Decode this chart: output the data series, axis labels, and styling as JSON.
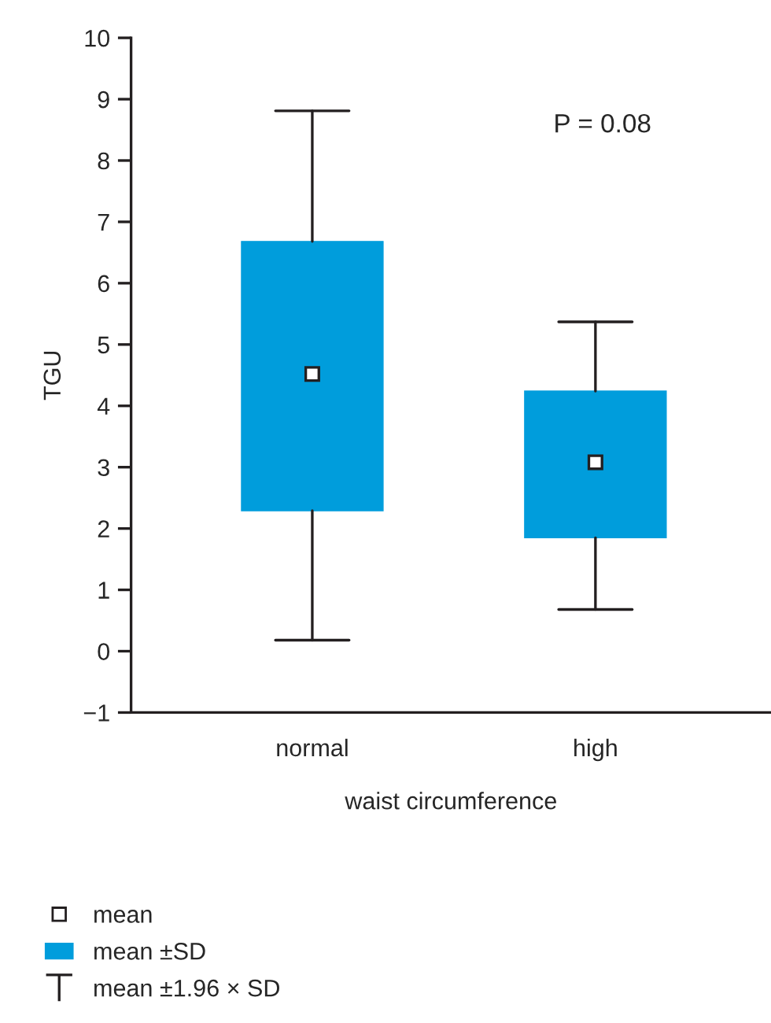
{
  "chart_data": {
    "type": "box",
    "xlabel": "waist circumference",
    "ylabel": "TGU",
    "categories": [
      "normal",
      "high"
    ],
    "ylim": [
      -1,
      10
    ],
    "yticks": [
      {
        "value": -1,
        "label": "−1"
      },
      0,
      1,
      2,
      3,
      4,
      5,
      6,
      7,
      8,
      9,
      10
    ],
    "annotations": [
      "P = 0.08",
      "mean ±1.96 × SD"
    ],
    "legend": "bottom left",
    "grid": false,
    "series": [
      {
        "name": "mean",
        "type": "scatter",
        "marker": "square",
        "color": "#ffffff",
        "values": [
          4.52,
          3.08
        ]
      },
      {
        "name": "mean ±SD",
        "type": "box",
        "color": "#009ddc",
        "boxes": [
          {
            "low": 0.18,
            "q1": 2.29,
            "q3": 6.68,
            "high": 8.81
          },
          {
            "low": 0.68,
            "q1": 1.85,
            "q3": 4.24,
            "high": 5.37
          }
        ]
      }
    ]
  }
}
